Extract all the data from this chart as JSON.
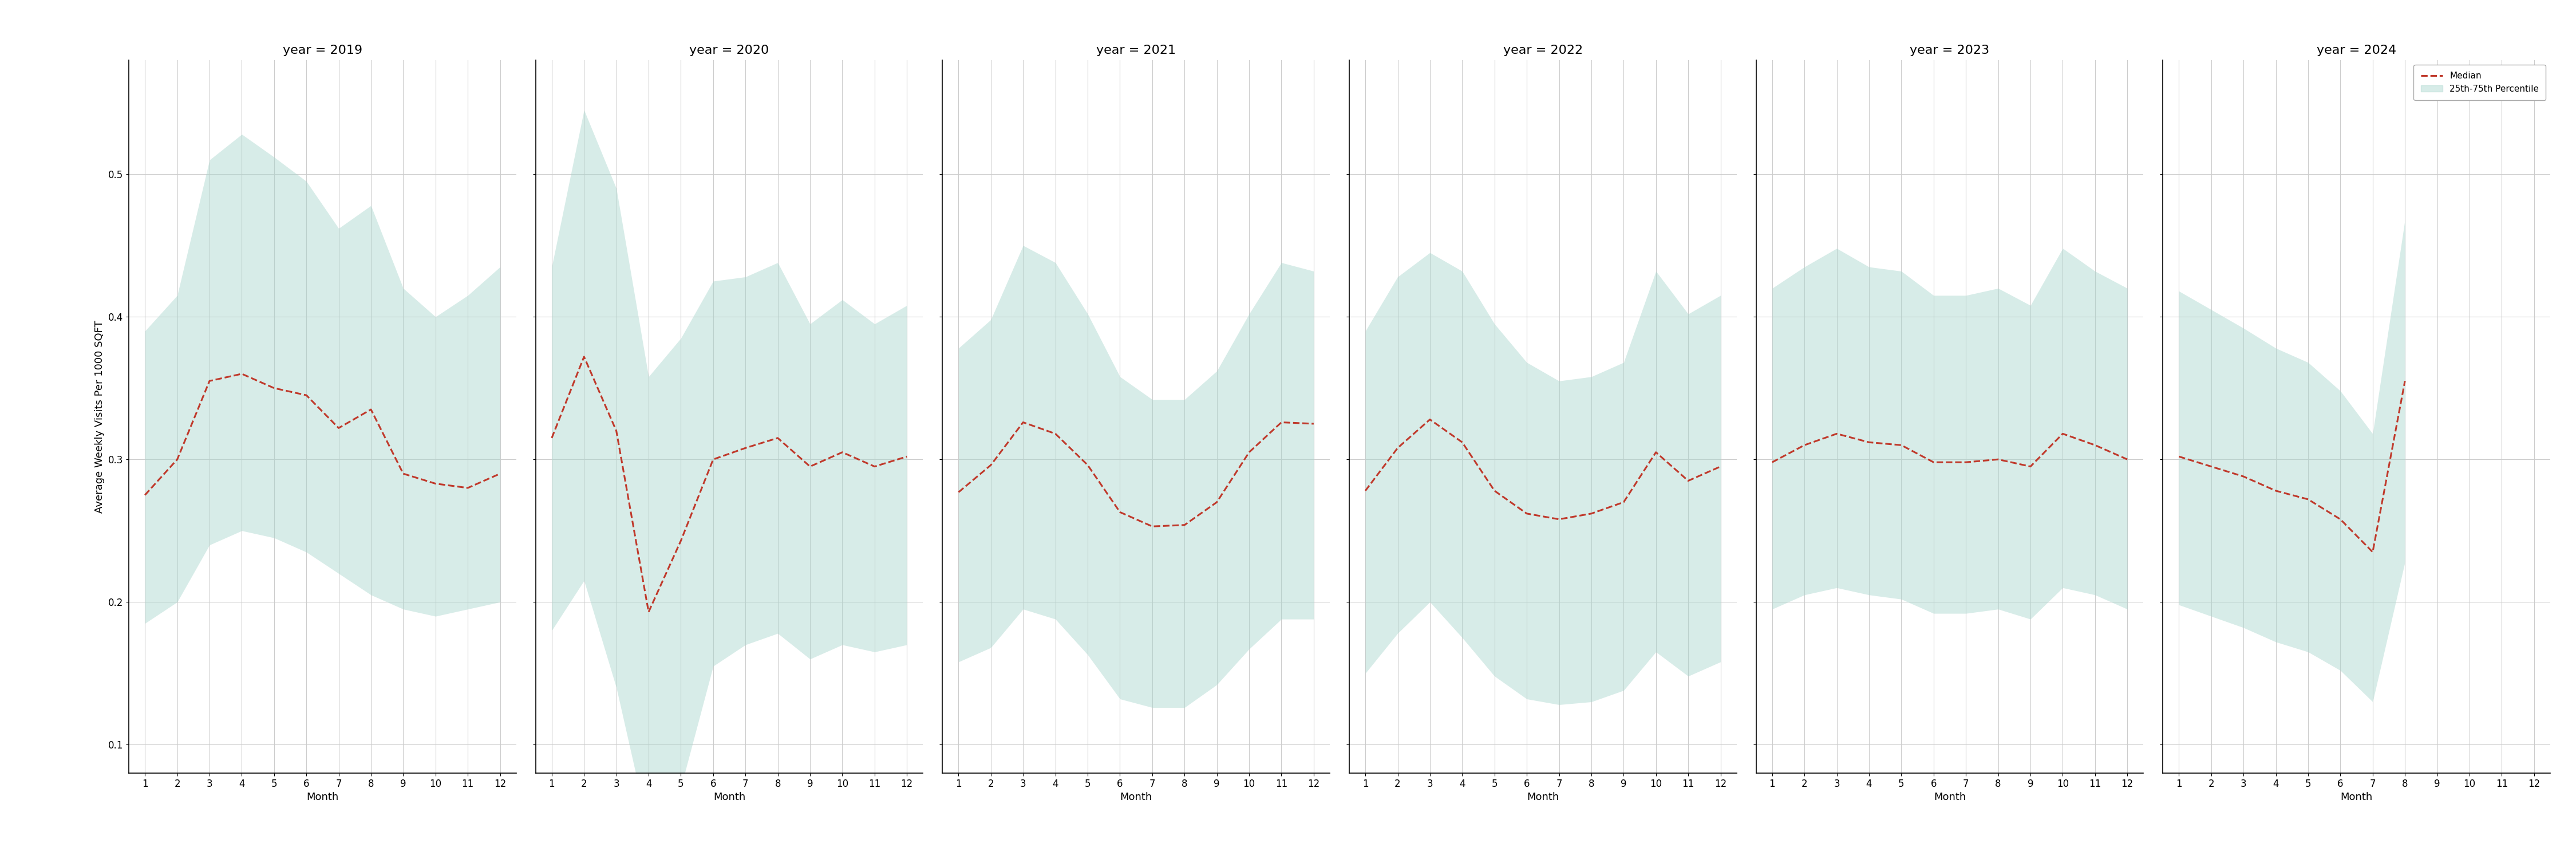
{
  "years": [
    2019,
    2020,
    2021,
    2022,
    2023,
    2024
  ],
  "months": [
    1,
    2,
    3,
    4,
    5,
    6,
    7,
    8,
    9,
    10,
    11,
    12
  ],
  "median": {
    "2019": [
      0.275,
      0.3,
      0.355,
      0.36,
      0.35,
      0.345,
      0.322,
      0.335,
      0.29,
      0.283,
      0.28,
      0.29
    ],
    "2020": [
      0.315,
      0.372,
      0.32,
      0.193,
      0.243,
      0.3,
      0.308,
      0.315,
      0.295,
      0.305,
      0.295,
      0.302
    ],
    "2021": [
      0.277,
      0.296,
      0.326,
      0.318,
      0.296,
      0.263,
      0.253,
      0.254,
      0.27,
      0.305,
      0.326,
      0.325
    ],
    "2022": [
      0.278,
      0.308,
      0.328,
      0.312,
      0.278,
      0.262,
      0.258,
      0.262,
      0.27,
      0.305,
      0.285,
      0.295
    ],
    "2023": [
      0.298,
      0.31,
      0.318,
      0.312,
      0.31,
      0.298,
      0.298,
      0.3,
      0.295,
      0.318,
      0.31,
      0.3
    ],
    "2024": [
      0.302,
      0.295,
      0.288,
      0.278,
      0.272,
      0.258,
      0.235,
      0.355,
      null,
      null,
      null,
      null
    ]
  },
  "p25": {
    "2019": [
      0.185,
      0.2,
      0.24,
      0.25,
      0.245,
      0.235,
      0.22,
      0.205,
      0.195,
      0.19,
      0.195,
      0.2
    ],
    "2020": [
      0.18,
      0.215,
      0.14,
      0.04,
      0.07,
      0.155,
      0.17,
      0.178,
      0.16,
      0.17,
      0.165,
      0.17
    ],
    "2021": [
      0.158,
      0.168,
      0.195,
      0.188,
      0.163,
      0.132,
      0.126,
      0.126,
      0.142,
      0.167,
      0.188,
      0.188
    ],
    "2022": [
      0.15,
      0.178,
      0.2,
      0.175,
      0.148,
      0.132,
      0.128,
      0.13,
      0.138,
      0.165,
      0.148,
      0.158
    ],
    "2023": [
      0.195,
      0.205,
      0.21,
      0.205,
      0.202,
      0.192,
      0.192,
      0.195,
      0.188,
      0.21,
      0.205,
      0.195
    ],
    "2024": [
      0.198,
      0.19,
      0.182,
      0.172,
      0.165,
      0.152,
      0.13,
      0.228,
      null,
      null,
      null,
      null
    ]
  },
  "p75": {
    "2019": [
      0.39,
      0.415,
      0.51,
      0.528,
      0.512,
      0.495,
      0.462,
      0.478,
      0.42,
      0.4,
      0.415,
      0.435
    ],
    "2020": [
      0.435,
      0.545,
      0.49,
      0.358,
      0.385,
      0.425,
      0.428,
      0.438,
      0.395,
      0.412,
      0.395,
      0.408
    ],
    "2021": [
      0.378,
      0.398,
      0.45,
      0.438,
      0.402,
      0.358,
      0.342,
      0.342,
      0.362,
      0.402,
      0.438,
      0.432
    ],
    "2022": [
      0.39,
      0.428,
      0.445,
      0.432,
      0.395,
      0.368,
      0.355,
      0.358,
      0.368,
      0.432,
      0.402,
      0.415
    ],
    "2023": [
      0.42,
      0.435,
      0.448,
      0.435,
      0.432,
      0.415,
      0.415,
      0.42,
      0.408,
      0.448,
      0.432,
      0.42
    ],
    "2024": [
      0.418,
      0.405,
      0.392,
      0.378,
      0.368,
      0.348,
      0.318,
      0.468,
      null,
      null,
      null,
      null
    ]
  },
  "ylim": [
    0.08,
    0.58
  ],
  "yticks": [
    0.1,
    0.2,
    0.3,
    0.4,
    0.5
  ],
  "fill_color": "#a8d5cc",
  "fill_alpha": 0.45,
  "line_color": "#c0392b",
  "line_style": "--",
  "line_width": 2.2,
  "ylabel": "Average Weekly Visits Per 1000 SQFT",
  "xlabel": "Month",
  "background_color": "#ffffff",
  "grid_color": "#cccccc",
  "title_fontsize": 16,
  "tick_fontsize": 12,
  "label_fontsize": 13
}
